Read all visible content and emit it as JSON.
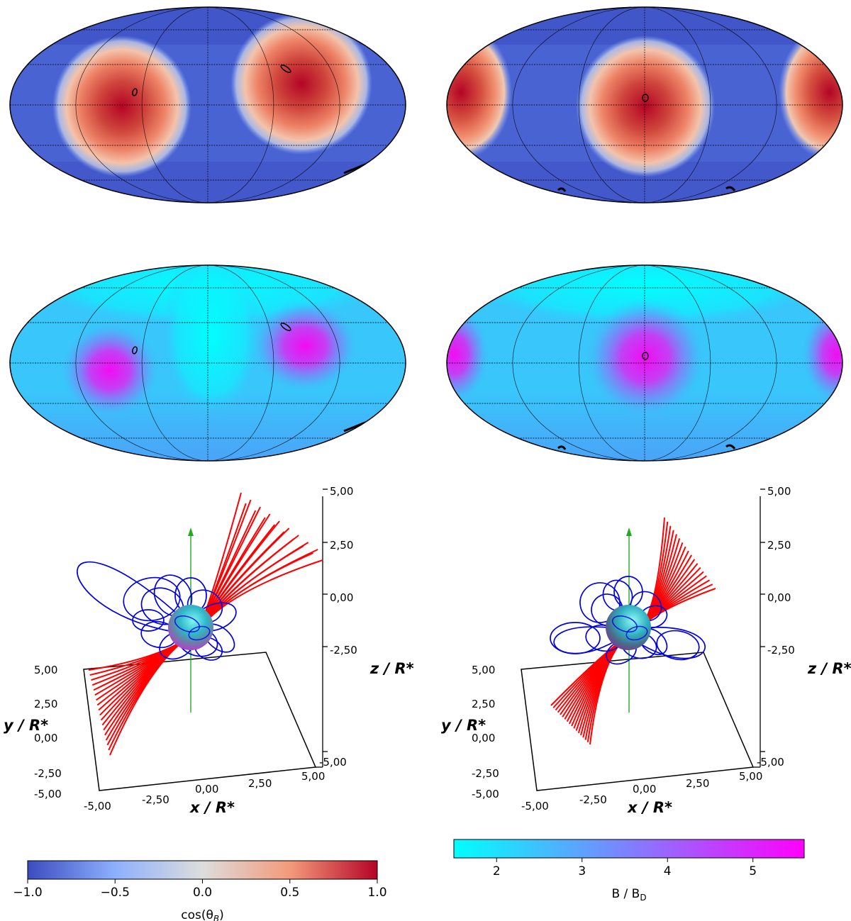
{
  "figure": {
    "panels": [
      {
        "id": "cos-map-1",
        "field": "cos_theta_B",
        "colormap": "coolwarm"
      },
      {
        "id": "cos-map-2",
        "field": "cos_theta_B",
        "colormap": "coolwarm"
      },
      {
        "id": "b-map-1",
        "field": "B_over_BD",
        "colormap": "cool"
      },
      {
        "id": "b-map-2",
        "field": "B_over_BD",
        "colormap": "cool"
      }
    ],
    "plots3d": [
      {
        "id": "field-lines-1",
        "xlabel": "x / R*",
        "ylabel": "y / R*",
        "zlabel": "z / R*",
        "x_ticks": [
          "-5,00",
          "-2,50",
          "0,00",
          "2,50",
          "5,00"
        ],
        "y_ticks": [
          "-5,00",
          "-2,50",
          "0,00",
          "2,50",
          "5,00"
        ],
        "z_ticks": [
          "5,00",
          "2,50",
          "0,00",
          "-2,50",
          "-5,00"
        ],
        "open_line_color": "#ff0000",
        "closed_line_color": "#0000e0",
        "axis_arrow_color": "#22aa22"
      },
      {
        "id": "field-lines-2",
        "xlabel": "x / R*",
        "ylabel": "y / R*",
        "zlabel": "z / R*",
        "x_ticks": [
          "-5,00",
          "-2,50",
          "0,00",
          "2,50",
          "5,00"
        ],
        "y_ticks": [
          "-5,00",
          "-2,50",
          "0,00",
          "2,50",
          "5,00"
        ],
        "z_ticks": [
          "5,00",
          "2,50",
          "0,00",
          "-2,50",
          "-5,00"
        ],
        "open_line_color": "#ff0000",
        "closed_line_color": "#0000e0",
        "axis_arrow_color": "#22aa22"
      }
    ],
    "colorbars": [
      {
        "id": "cos-colorbar",
        "label_main": "cos(θ",
        "label_sub": "B",
        "label_end": ")",
        "range": [
          -1.0,
          1.0
        ],
        "ticks": [
          "−1.0",
          "−0.5",
          "0.0",
          "0.5",
          "1.0"
        ],
        "tick_values": [
          -1.0,
          -0.5,
          0.0,
          0.5,
          1.0
        ],
        "colors": [
          "#3b4cc0",
          "#8db0fe",
          "#dddddd",
          "#f49a7b",
          "#b40426"
        ]
      },
      {
        "id": "b-colorbar",
        "label_main": "B / B",
        "label_sub": "D",
        "label_end": "",
        "range": [
          1.5,
          5.6
        ],
        "ticks": [
          "2",
          "3",
          "4",
          "5"
        ],
        "tick_values": [
          2,
          3,
          4,
          5
        ],
        "colors": [
          "#00ffff",
          "#ff00ff"
        ]
      }
    ]
  }
}
